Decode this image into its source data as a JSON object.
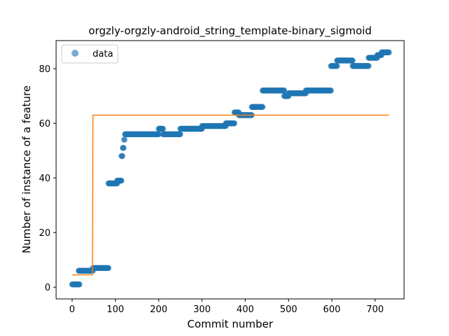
{
  "chart_data": {
    "type": "scatter",
    "title": "orgzly-orgzly-android_string_template-binary_sigmoid",
    "xlabel": "Commit number",
    "ylabel": "Number of instance of a feature",
    "xlim": [
      -37,
      767
    ],
    "ylim": [
      -4.3,
      90.3
    ],
    "xticks": [
      0,
      100,
      200,
      300,
      400,
      500,
      600,
      700
    ],
    "yticks": [
      0,
      20,
      40,
      60,
      80
    ],
    "grid": false,
    "legend": {
      "position": "top-left",
      "entries": [
        "data"
      ]
    },
    "colors": {
      "data": "#1f77b4",
      "fit": "#ff7f0e"
    },
    "series": [
      {
        "name": "data",
        "kind": "scatter",
        "segments": [
          {
            "x_start": 0,
            "x_end": 17,
            "y": 1
          },
          {
            "x_start": 15,
            "x_end": 48,
            "y": 6
          },
          {
            "x_start": 48,
            "x_end": 84,
            "y": 7
          },
          {
            "x_start": 84,
            "x_end": 104,
            "y": 38
          },
          {
            "x_start": 104,
            "x_end": 114,
            "y": 39
          },
          {
            "x_start": 114,
            "x_end": 116,
            "y": 48
          },
          {
            "x_start": 117,
            "x_end": 119,
            "y": 51
          },
          {
            "x_start": 120,
            "x_end": 121,
            "y": 54
          },
          {
            "x_start": 122,
            "x_end": 200,
            "y": 56
          },
          {
            "x_start": 200,
            "x_end": 210,
            "y": 58
          },
          {
            "x_start": 210,
            "x_end": 250,
            "y": 56
          },
          {
            "x_start": 250,
            "x_end": 300,
            "y": 58
          },
          {
            "x_start": 300,
            "x_end": 355,
            "y": 59
          },
          {
            "x_start": 355,
            "x_end": 375,
            "y": 60
          },
          {
            "x_start": 375,
            "x_end": 385,
            "y": 64
          },
          {
            "x_start": 385,
            "x_end": 415,
            "y": 63
          },
          {
            "x_start": 415,
            "x_end": 440,
            "y": 66
          },
          {
            "x_start": 440,
            "x_end": 490,
            "y": 72
          },
          {
            "x_start": 490,
            "x_end": 500,
            "y": 70
          },
          {
            "x_start": 500,
            "x_end": 540,
            "y": 71
          },
          {
            "x_start": 540,
            "x_end": 598,
            "y": 72
          },
          {
            "x_start": 598,
            "x_end": 612,
            "y": 81
          },
          {
            "x_start": 612,
            "x_end": 648,
            "y": 83
          },
          {
            "x_start": 648,
            "x_end": 685,
            "y": 81
          },
          {
            "x_start": 685,
            "x_end": 705,
            "y": 84
          },
          {
            "x_start": 705,
            "x_end": 715,
            "y": 85
          },
          {
            "x_start": 715,
            "x_end": 732,
            "y": 86
          }
        ]
      },
      {
        "name": "",
        "kind": "line",
        "x": [
          0,
          47,
          47,
          48,
          48,
          732
        ],
        "y": [
          4.5,
          4.5,
          10,
          60,
          63,
          63
        ]
      }
    ]
  }
}
